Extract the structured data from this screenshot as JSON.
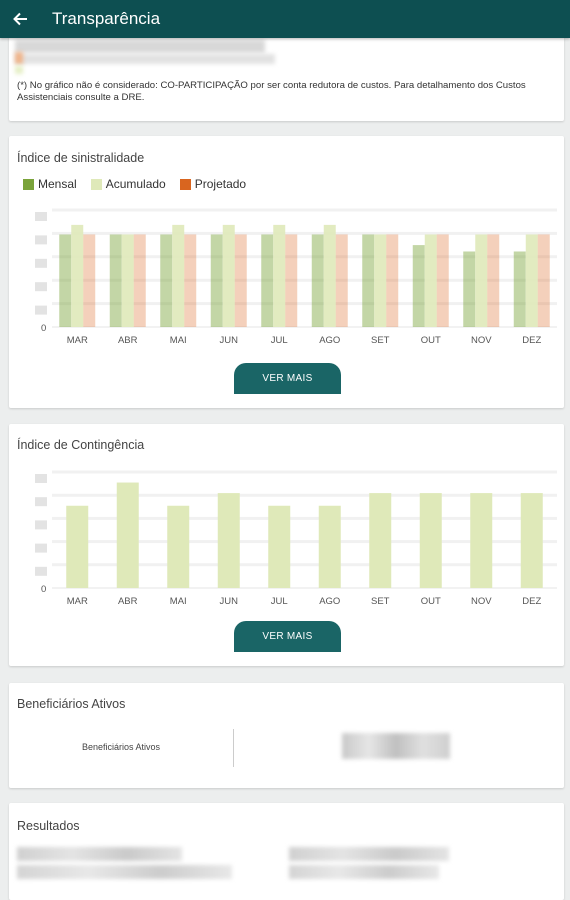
{
  "appbar": {
    "back_icon": "arrow-left-icon",
    "title": "Transparência"
  },
  "note": {
    "text": "(*) No gráfico não é considerado: CO-PARTICIPAÇÃO por ser  conta redutora de custos. Para detalhamento dos Custos Assistenciais consulte a DRE."
  },
  "sinistralidade": {
    "title": "Índice de sinistralidade",
    "legend": [
      {
        "label": "Mensal",
        "color": "#7aa33a"
      },
      {
        "label": "Acumulado",
        "color": "#dfe9b9"
      },
      {
        "label": "Projetado",
        "color": "#d9651f"
      }
    ],
    "button_label": "VER MAIS"
  },
  "contingencia": {
    "title": "Índice de Contingência",
    "button_label": "VER MAIS"
  },
  "beneficiarios": {
    "title": "Beneficiários Ativos",
    "label": "Beneficiários Ativos"
  },
  "resultados": {
    "title": "Resultados"
  },
  "chart_data": [
    {
      "type": "bar",
      "categories": [
        "MAR",
        "ABR",
        "MAI",
        "JUN",
        "JUL",
        "AGO",
        "SET",
        "OUT",
        "NOV",
        "DEZ"
      ],
      "series": [
        {
          "name": "Mensal",
          "values": [
            87,
            87,
            87,
            87,
            87,
            87,
            87,
            77,
            71,
            71
          ]
        },
        {
          "name": "Acumulado",
          "values": [
            96,
            87,
            96,
            96,
            96,
            96,
            87,
            87,
            87,
            87
          ]
        },
        {
          "name": "Projetado",
          "values": [
            87,
            87,
            87,
            87,
            87,
            87,
            87,
            87,
            87,
            87
          ]
        }
      ],
      "y_tick_labels": [
        "0"
      ],
      "ylim": [
        0,
        110
      ]
    },
    {
      "type": "bar",
      "categories": [
        "MAR",
        "ABR",
        "MAI",
        "JUN",
        "JUL",
        "AGO",
        "SET",
        "OUT",
        "NOV",
        "DEZ"
      ],
      "series": [
        {
          "name": "",
          "values": [
            78,
            100,
            78,
            90,
            78,
            78,
            90,
            90,
            90,
            90
          ]
        }
      ],
      "y_tick_labels": [
        "0"
      ],
      "ylim": [
        0,
        110
      ]
    }
  ]
}
